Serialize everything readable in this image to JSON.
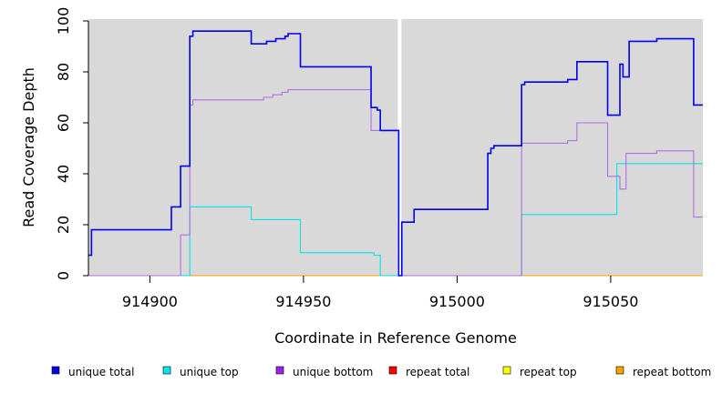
{
  "chart_data": {
    "type": "line",
    "title": "",
    "xlabel": "Coordinate in Reference Genome",
    "ylabel": "Read Coverage Depth",
    "xlim": [
      914880,
      915080
    ],
    "ylim": [
      0,
      100
    ],
    "x_ticks": [
      914900,
      914950,
      915000,
      915050
    ],
    "y_ticks": [
      0,
      20,
      40,
      60,
      80,
      100
    ],
    "x_tick_labels": [
      "914900",
      "914950",
      "915000",
      "915050"
    ],
    "y_tick_labels": [
      "0",
      "20",
      "40",
      "60",
      "80",
      "100"
    ],
    "grid": false,
    "background": "#d9d9d9",
    "gap_marker_x": 914981,
    "legend_position": "bottom",
    "series": [
      {
        "name": "unique total",
        "color": "#0000ee",
        "legend_color": "#0000ee",
        "steps": [
          [
            914880,
            8
          ],
          [
            914881,
            18
          ],
          [
            914907,
            27
          ],
          [
            914910,
            43
          ],
          [
            914913,
            94
          ],
          [
            914914,
            96
          ],
          [
            914933,
            91
          ],
          [
            914938,
            92
          ],
          [
            914941,
            93
          ],
          [
            914944,
            94
          ],
          [
            914945,
            95
          ],
          [
            914949,
            82
          ],
          [
            914972,
            66
          ],
          [
            914974,
            65
          ],
          [
            914975,
            57
          ],
          [
            914981,
            0
          ],
          [
            914982,
            21
          ],
          [
            914986,
            26
          ],
          [
            915010,
            48
          ],
          [
            915011,
            50
          ],
          [
            915012,
            51
          ],
          [
            915021,
            75
          ],
          [
            915022,
            76
          ],
          [
            915036,
            77
          ],
          [
            915039,
            84
          ],
          [
            915049,
            63
          ],
          [
            915053,
            83
          ],
          [
            915054,
            78
          ],
          [
            915056,
            92
          ],
          [
            915065,
            93
          ],
          [
            915077,
            67
          ],
          [
            915080,
            67
          ]
        ]
      },
      {
        "name": "unique top",
        "color": "#00e5e5",
        "legend_color": "#00e5e5",
        "steps": [
          [
            914880,
            0
          ],
          [
            914913,
            27
          ],
          [
            914933,
            22
          ],
          [
            914949,
            9
          ],
          [
            914973,
            8
          ],
          [
            914975,
            0
          ],
          [
            915021,
            24
          ],
          [
            915052,
            44
          ],
          [
            915080,
            44
          ]
        ]
      },
      {
        "name": "unique bottom",
        "color": "#b06ee0",
        "legend_color": "#a020f0",
        "steps": [
          [
            914880,
            0
          ],
          [
            914910,
            16
          ],
          [
            914913,
            67
          ],
          [
            914914,
            69
          ],
          [
            914937,
            70
          ],
          [
            914940,
            71
          ],
          [
            914943,
            72
          ],
          [
            914945,
            73
          ],
          [
            914972,
            57
          ],
          [
            914981,
            0
          ],
          [
            915021,
            52
          ],
          [
            915036,
            53
          ],
          [
            915039,
            60
          ],
          [
            915049,
            39
          ],
          [
            915053,
            34
          ],
          [
            915055,
            48
          ],
          [
            915065,
            49
          ],
          [
            915077,
            23
          ],
          [
            915080,
            23
          ]
        ]
      },
      {
        "name": "repeat total",
        "color": "#ff0000",
        "legend_color": "#ff0000",
        "steps": [
          [
            914880,
            0
          ],
          [
            915080,
            0
          ]
        ]
      },
      {
        "name": "repeat top",
        "color": "#ffff00",
        "legend_color": "#ffff00",
        "steps": [
          [
            914880,
            0
          ],
          [
            915080,
            0
          ]
        ]
      },
      {
        "name": "repeat bottom",
        "color": "#ffa500",
        "legend_color": "#ffa500",
        "steps": [
          [
            914880,
            0
          ],
          [
            915080,
            0
          ]
        ]
      }
    ]
  }
}
